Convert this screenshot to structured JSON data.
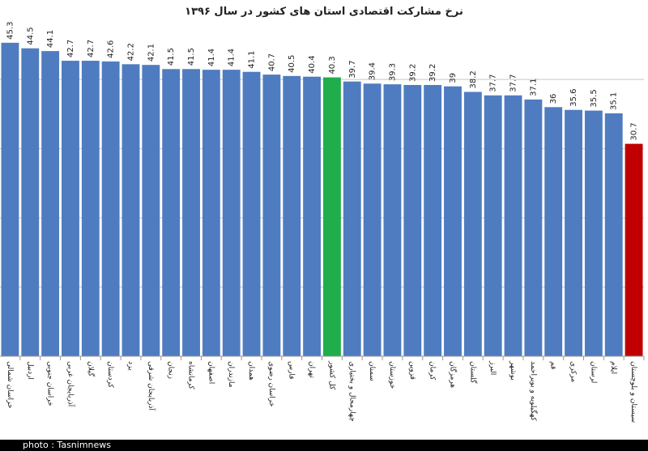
{
  "chart_data": {
    "type": "bar",
    "title": "نرخ مشارکت اقتصادی استان های کشور در سال ۱۳۹۶",
    "credit": "photo : Tasnimnews",
    "categories": [
      "خراسان شمالی",
      "اردبیل",
      "خراسان جنوبی",
      "آذربایجان غربی",
      "گیلان",
      "کردستان",
      "یزد",
      "آذربایجان شرقی",
      "زنجان",
      "کرمانشاه",
      "اصفهان",
      "مازندران",
      "همدان",
      "خراسان رضوی",
      "فارس",
      "تهران",
      "کل کشور",
      "چهارمحال و بختیاری",
      "سمنان",
      "خوزستان",
      "قزوین",
      "کرمان",
      "هرمزگان",
      "گلستان",
      "البرز",
      "بوشهر",
      "کهگیلویه و بویراحمد",
      "قم",
      "مرکزی",
      "لرستان",
      "ایلام",
      "سیستان و بلوچستان"
    ],
    "values": [
      45.3,
      44.5,
      44.1,
      42.7,
      42.7,
      42.6,
      42.2,
      42.1,
      41.5,
      41.5,
      41.4,
      41.4,
      41.1,
      40.7,
      40.5,
      40.4,
      40.3,
      39.7,
      39.4,
      39.3,
      39.2,
      39.2,
      39,
      38.2,
      37.7,
      37.7,
      37.1,
      36,
      35.6,
      35.5,
      35.1,
      30.7
    ],
    "colors": [
      "#4f7cc0",
      "#4f7cc0",
      "#4f7cc0",
      "#4f7cc0",
      "#4f7cc0",
      "#4f7cc0",
      "#4f7cc0",
      "#4f7cc0",
      "#4f7cc0",
      "#4f7cc0",
      "#4f7cc0",
      "#4f7cc0",
      "#4f7cc0",
      "#4f7cc0",
      "#4f7cc0",
      "#4f7cc0",
      "#1fae4b",
      "#4f7cc0",
      "#4f7cc0",
      "#4f7cc0",
      "#4f7cc0",
      "#4f7cc0",
      "#4f7cc0",
      "#4f7cc0",
      "#4f7cc0",
      "#4f7cc0",
      "#4f7cc0",
      "#4f7cc0",
      "#4f7cc0",
      "#4f7cc0",
      "#4f7cc0",
      "#c00000"
    ],
    "ylim": [
      0,
      46.8
    ],
    "yticks": [
      0,
      10,
      20,
      30,
      40
    ],
    "grid": true,
    "tick_labels": false
  }
}
